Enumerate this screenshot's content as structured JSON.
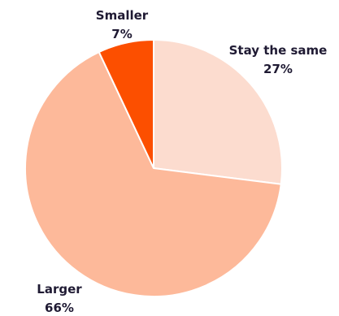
{
  "chart_data": {
    "type": "pie",
    "start_angle_deg": 0,
    "direction": "clockwise",
    "slices": [
      {
        "label": "Stay the same",
        "value_label": "27%",
        "value": 27,
        "color": "#fcdccf"
      },
      {
        "label": "Larger",
        "value_label": "66%",
        "value": 66,
        "color": "#fdb99a"
      },
      {
        "label": "Smaller",
        "value_label": "7%",
        "value": 7,
        "color": "#fc4f00"
      }
    ]
  }
}
